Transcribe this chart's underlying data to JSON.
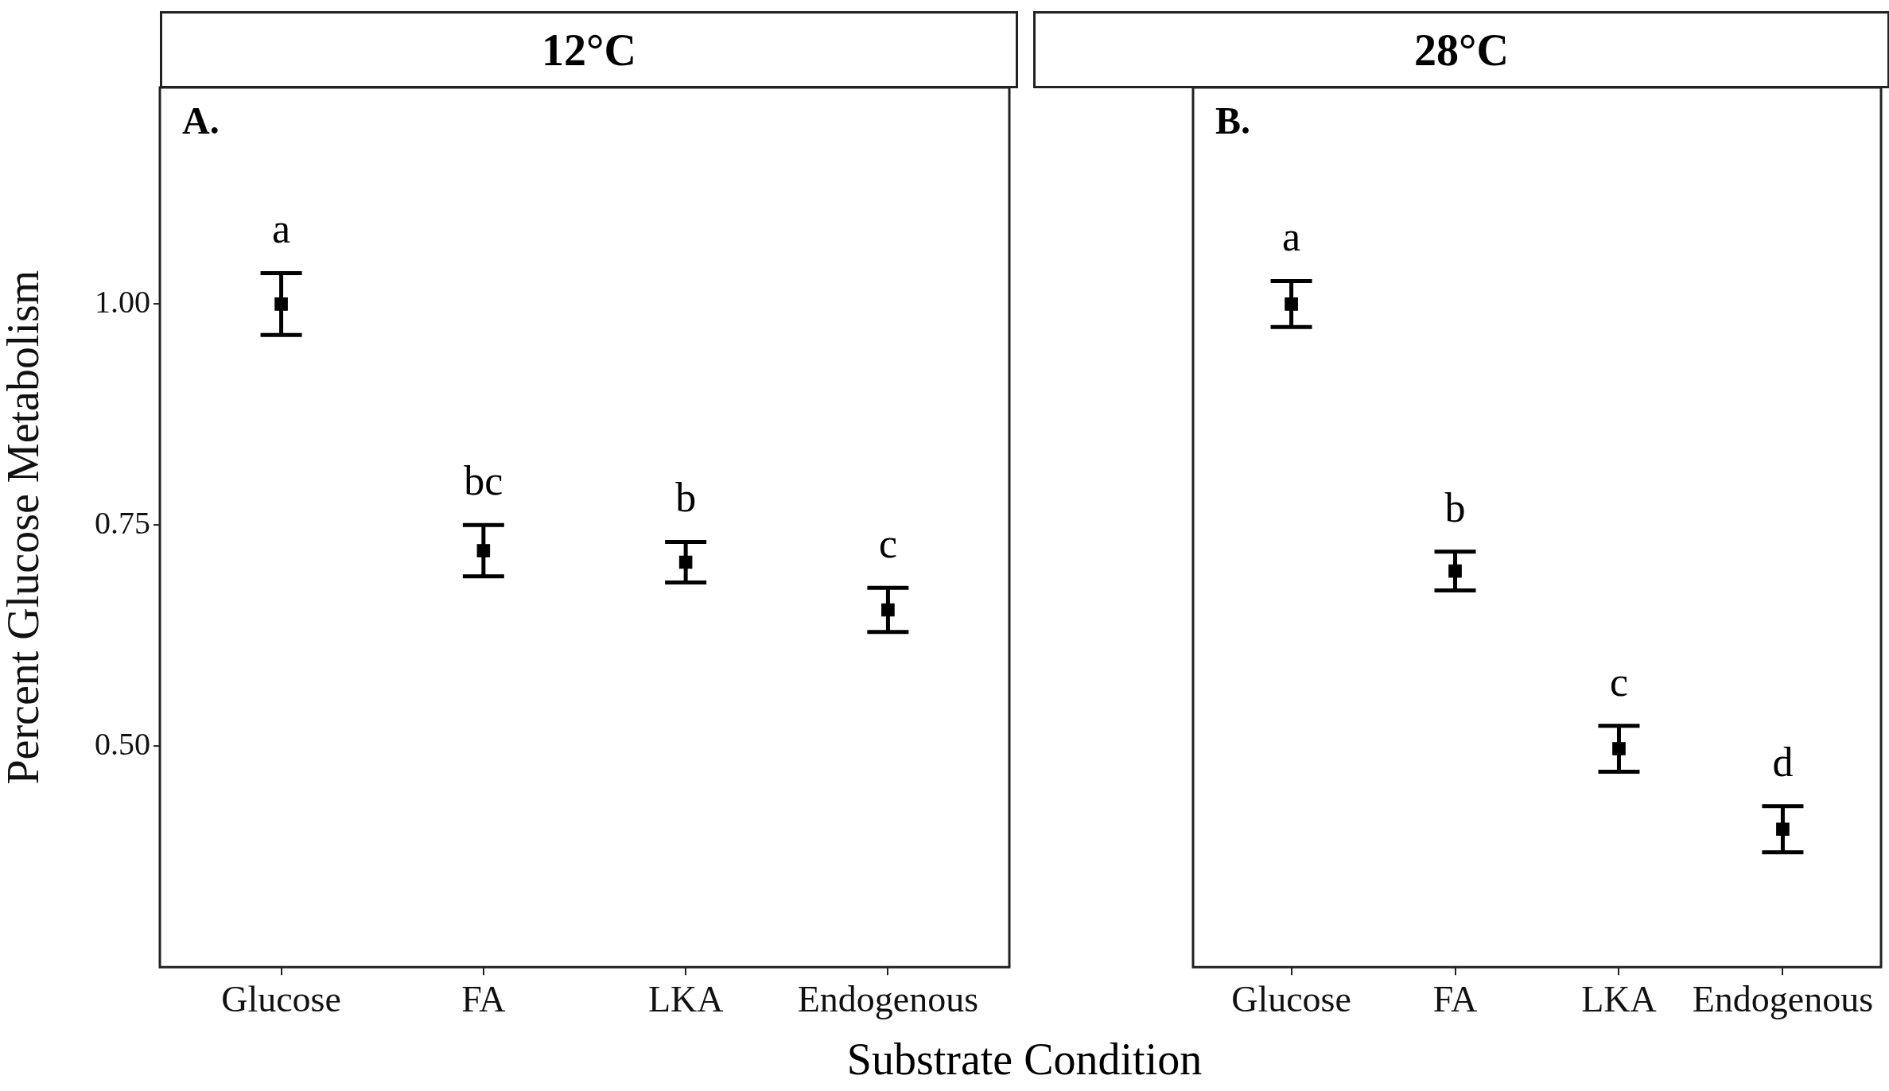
{
  "chart_data": [
    {
      "type": "scatter",
      "title": "12°C",
      "xlabel": "Substrate Condition",
      "ylabel": "Percent Glucose Metabolism",
      "categories": [
        "Glucose",
        "FA",
        "LKA",
        "Endogenous"
      ],
      "series": [
        {
          "color": "#000000",
          "values": [
            1.0,
            0.721,
            0.708,
            0.654
          ],
          "errors": [
            0.035,
            0.029,
            0.023,
            0.025
          ]
        }
      ],
      "ylim": [
        0.25,
        1.245
      ],
      "yticks": [
        {
          "value": 0.5,
          "label": "0.50"
        },
        {
          "value": 0.75,
          "label": "0.75"
        },
        {
          "value": 1.0,
          "label": "1.00"
        }
      ],
      "marker": "square",
      "grid": false,
      "legend": false,
      "annotations": [
        "A.",
        "a",
        "bc",
        "b",
        "c"
      ]
    },
    {
      "type": "scatter",
      "title": "28°C",
      "categories": [
        "Glucose",
        "FA",
        "LKA",
        "Endogenous"
      ],
      "series": [
        {
          "color": "#000000",
          "values": [
            1.0,
            0.698,
            0.497,
            0.406
          ],
          "errors": [
            0.026,
            0.022,
            0.026,
            0.026
          ]
        }
      ],
      "ylim": [
        0.25,
        1.245
      ],
      "tick_labels": "x",
      "marker": "square",
      "grid": false,
      "legend": false,
      "annotations": [
        "B.",
        "a",
        "b",
        "c",
        "d"
      ]
    }
  ]
}
